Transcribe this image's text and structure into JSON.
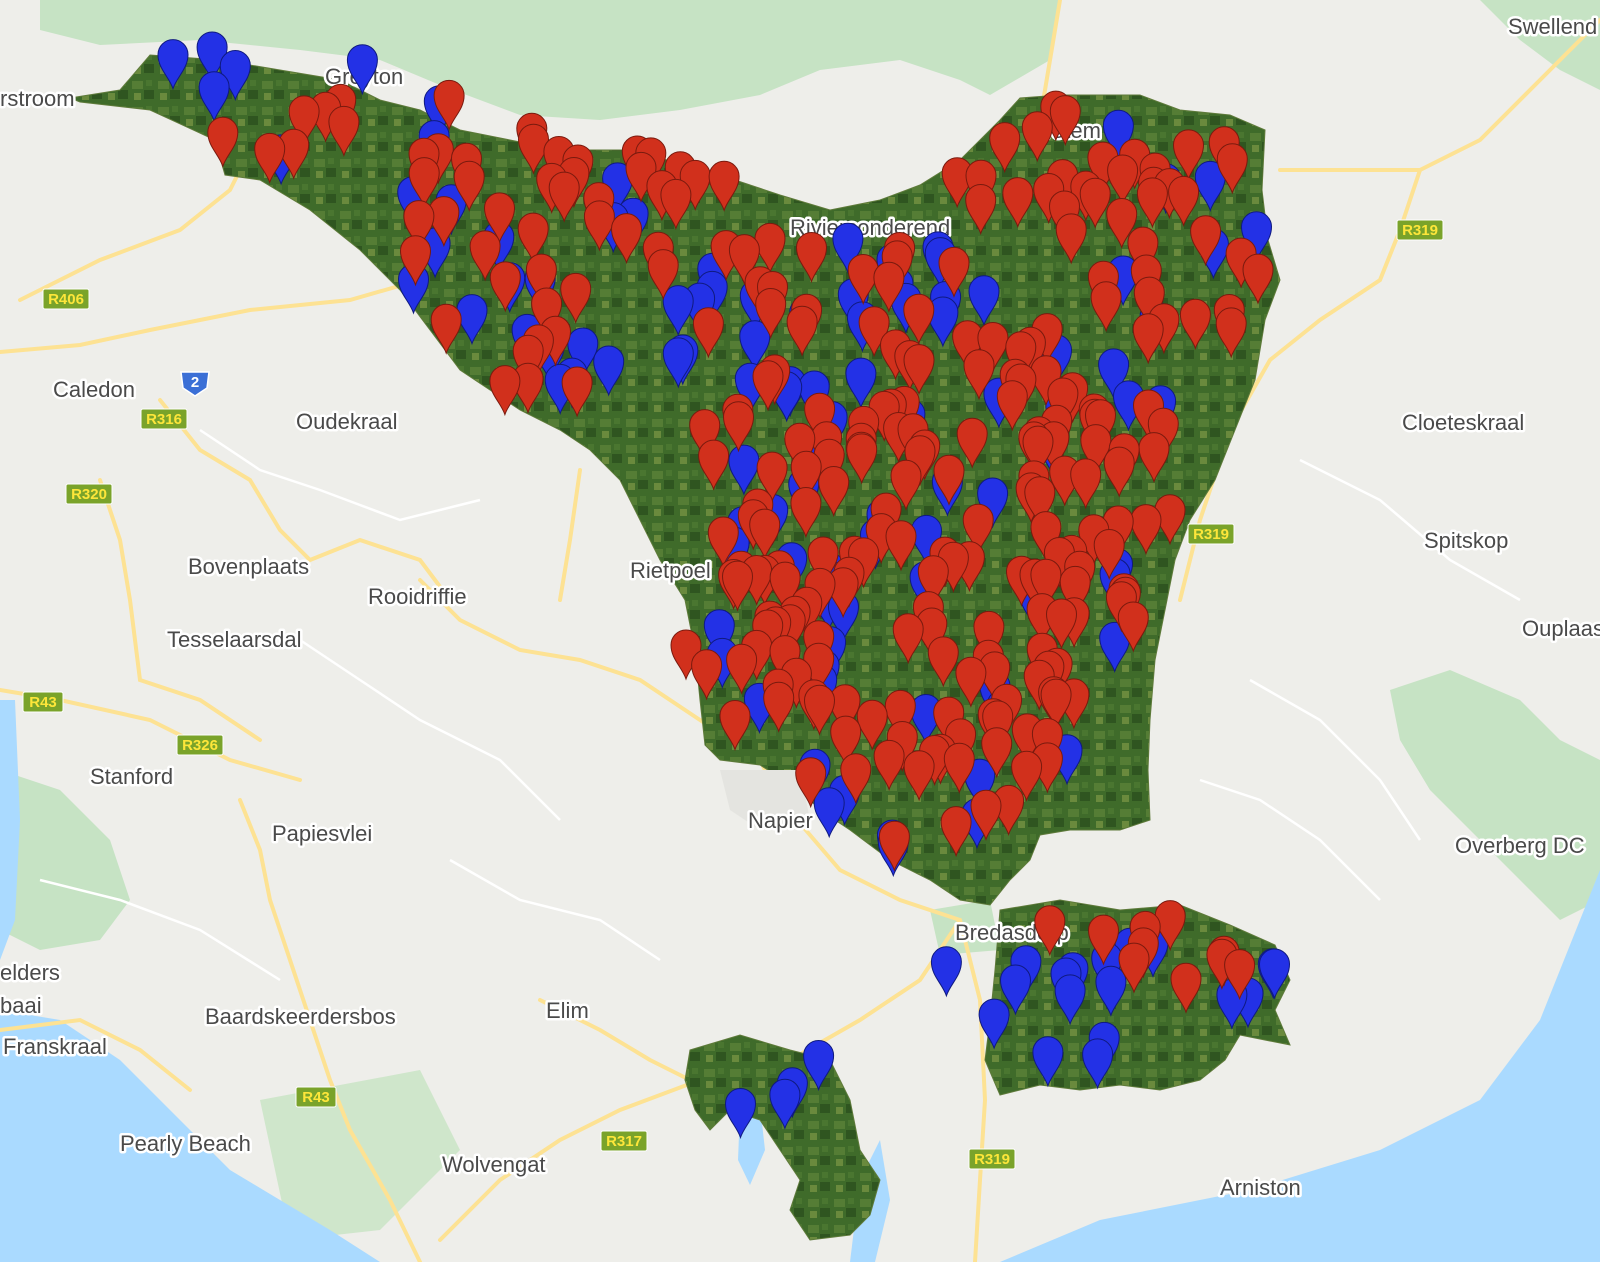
{
  "places": [
    "Swellend",
    "rstroom",
    "Greyton",
    "Caledon",
    "Oudekraal",
    "Bovenplaats",
    "Rooidriffie",
    "Tesselaarsdal",
    "Stanford",
    "Papiesvlei",
    "elders",
    "baai",
    "Franskraal",
    "Baardskeerdersbos",
    "Elim",
    "Pearly Beach",
    "Wolvengat",
    "Napier",
    "Bredasdorp",
    "Arniston",
    "Cloeteskraal",
    "Spitskop",
    "Ouplaas",
    "Overberg DC",
    "Rietpoel",
    "Riviersonderend",
    "Protem"
  ],
  "roads": [
    "R406",
    "R319",
    "R316",
    "R320",
    "R326",
    "R43",
    "R317",
    "R319",
    "R43",
    "R319",
    "2",
    "R316"
  ],
  "colors": {
    "land": "#eeeeea",
    "water": "#aadaff",
    "park": "#c8e6c9",
    "road": "#fde293",
    "overlay": "#3f6b2a",
    "marker_red": "#d1301c",
    "marker_blue": "#2331e6"
  },
  "markers": {
    "icon": "map-pin-icon",
    "red_count": 283,
    "blue_count": 141
  }
}
